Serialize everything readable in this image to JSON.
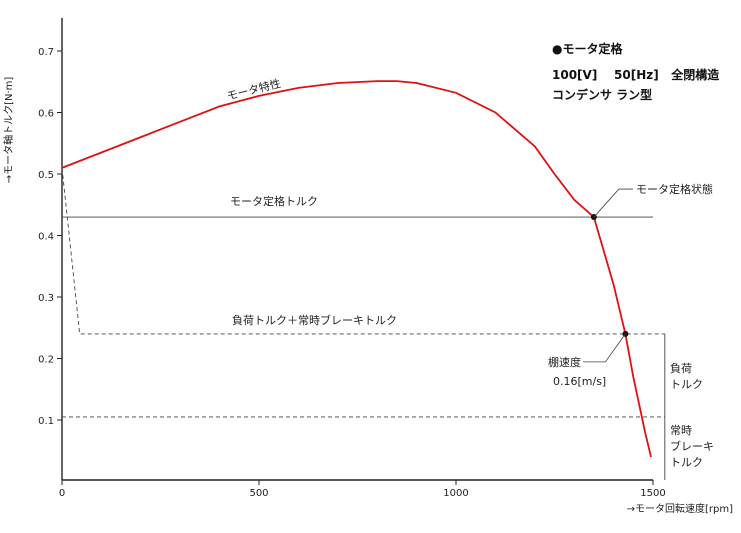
{
  "chart_data": {
    "type": "line",
    "xlabel": "→モータ回転速度[rpm]",
    "ylabel": "→モータ軸トルク[N·m]",
    "xlim": [
      0,
      1500
    ],
    "ylim": [
      0,
      0.75
    ],
    "x_ticks": [
      "0",
      "500",
      "1000",
      "1500"
    ],
    "y_ticks": [
      "0.1",
      "0.2",
      "0.3",
      "0.4",
      "0.5",
      "0.6",
      "0.7"
    ],
    "grid": false,
    "legend": "none",
    "series": [
      {
        "name": "モータ特性",
        "color": "#e01010",
        "style": "solid",
        "x": [
          0,
          100,
          200,
          300,
          400,
          500,
          600,
          700,
          800,
          850,
          900,
          1000,
          1100,
          1200,
          1250,
          1300,
          1350,
          1400,
          1430,
          1450,
          1480,
          1495
        ],
        "y": [
          0.51,
          0.535,
          0.56,
          0.585,
          0.61,
          0.627,
          0.64,
          0.648,
          0.651,
          0.651,
          0.648,
          0.632,
          0.6,
          0.545,
          0.5,
          0.458,
          0.43,
          0.32,
          0.24,
          0.17,
          0.08,
          0.04
        ]
      },
      {
        "name": "モータ定格トルク",
        "color": "#444444",
        "style": "solid",
        "x": [
          0,
          1500
        ],
        "y": [
          0.43,
          0.43
        ]
      },
      {
        "name": "負荷トルク＋常時ブレーキトルク",
        "color": "#444444",
        "style": "dashed",
        "x": [
          0,
          45,
          1530
        ],
        "y": [
          0.51,
          0.24,
          0.24
        ]
      },
      {
        "name": "常時ブレーキトルク",
        "color": "#444444",
        "style": "dashed",
        "x": [
          0,
          1530
        ],
        "y": [
          0.105,
          0.105
        ]
      }
    ],
    "points": [
      {
        "name": "モータ定格状態",
        "x": 1350,
        "y": 0.43
      },
      {
        "name": "棚速度",
        "x": 1430,
        "y": 0.24
      }
    ],
    "labels": {
      "motor_char": "モータ特性",
      "rated_torque": "モータ定格トルク",
      "load_brake": "負荷トルク＋常時ブレーキトルク",
      "rated_state": "モータ定格状態",
      "shelf_speed_1": "棚速度",
      "shelf_speed_2": "0.16[m/s]",
      "load_1": "負荷",
      "load_2": "トルク",
      "brake_1": "常時",
      "brake_2": "ブレーキ",
      "brake_3": "トルク"
    },
    "spec": {
      "title": "●モータ定格",
      "line2": "100[V]    50[Hz]   全閉構造",
      "line3": "コンデンサ ラン型"
    }
  }
}
